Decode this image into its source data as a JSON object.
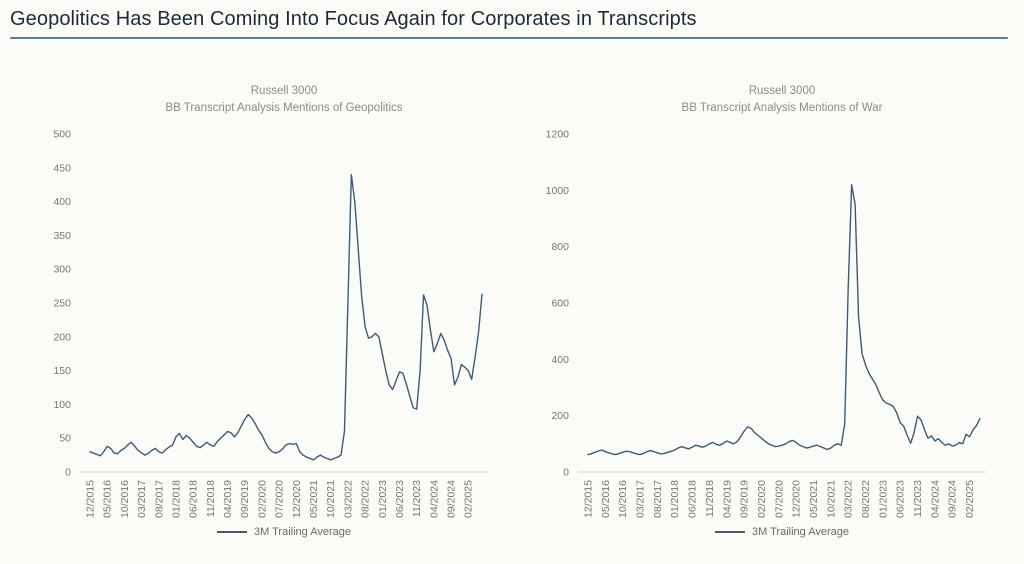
{
  "page": {
    "title": "Geopolitics Has Been Coming Into Focus Again for Corporates in Transcripts"
  },
  "colors": {
    "background": "#fbfbf8",
    "title_text": "#1e2a38",
    "title_underline": "#5e7e95",
    "chart_title_text": "#8c8c86",
    "axis_tick_text": "#767672",
    "axis_line": "#d9d9d4",
    "series_line": "#3e5c77",
    "legend_swatch": "#4d5a68",
    "legend_text": "#6b6b66"
  },
  "chart_data": [
    {
      "type": "line",
      "title_line1": "Russell 3000",
      "title_line2": "BB Transcript Analysis Mentions of Geopolitics",
      "legend_label": "3M Trailing Average",
      "legend_position": "bottom",
      "grid": false,
      "ylim": [
        0,
        500
      ],
      "yticks": [
        0,
        50,
        100,
        150,
        200,
        250,
        300,
        350,
        400,
        450,
        500
      ],
      "x_tick_every": 5,
      "x_tick_labels": [
        "12/2015",
        "05/2016",
        "10/2016",
        "03/2017",
        "08/2017",
        "01/2018",
        "06/2018",
        "11/2018",
        "04/2019",
        "09/2019",
        "02/2020",
        "07/2020",
        "12/2020",
        "05/2021",
        "10/2021",
        "03/2022",
        "08/2022",
        "01/2023",
        "06/2023",
        "11/2023",
        "04/2024",
        "09/2024",
        "02/2025"
      ],
      "x_start": "12/2015",
      "series": [
        {
          "name": "3M Trailing Average",
          "monthly_values": [
            30,
            28,
            26,
            24,
            30,
            38,
            35,
            28,
            27,
            32,
            35,
            40,
            44,
            38,
            32,
            28,
            25,
            28,
            32,
            35,
            30,
            28,
            33,
            37,
            40,
            52,
            57,
            48,
            54,
            50,
            44,
            38,
            36,
            40,
            44,
            40,
            38,
            45,
            50,
            55,
            60,
            58,
            52,
            58,
            68,
            78,
            85,
            80,
            72,
            62,
            55,
            44,
            35,
            30,
            28,
            30,
            34,
            40,
            42,
            41,
            42,
            30,
            25,
            22,
            20,
            18,
            22,
            25,
            22,
            20,
            18,
            20,
            22,
            25,
            60,
            250,
            440,
            400,
            330,
            260,
            215,
            198,
            200,
            205,
            200,
            175,
            150,
            129,
            122,
            135,
            148,
            146,
            130,
            112,
            95,
            93,
            150,
            262,
            247,
            210,
            178,
            190,
            205,
            195,
            180,
            168,
            129,
            140,
            159,
            155,
            150,
            137,
            170,
            207,
            263
          ]
        }
      ]
    },
    {
      "type": "line",
      "title_line1": "Russell 3000",
      "title_line2": "BB Transcript Analysis Mentions of War",
      "legend_label": "3M Trailing Average",
      "legend_position": "bottom",
      "grid": false,
      "ylim": [
        0,
        1200
      ],
      "yticks": [
        0,
        200,
        400,
        600,
        800,
        1000,
        1200
      ],
      "x_tick_every": 5,
      "x_tick_labels": [
        "12/2015",
        "05/2016",
        "10/2016",
        "03/2017",
        "08/2017",
        "01/2018",
        "06/2018",
        "11/2018",
        "04/2019",
        "09/2019",
        "02/2020",
        "07/2020",
        "12/2020",
        "05/2021",
        "10/2021",
        "03/2022",
        "08/2022",
        "01/2023",
        "06/2023",
        "11/2023",
        "04/2024",
        "09/2024",
        "02/2025"
      ],
      "x_start": "12/2015",
      "series": [
        {
          "name": "3M Trailing Average",
          "monthly_values": [
            62,
            65,
            70,
            75,
            78,
            72,
            68,
            64,
            62,
            66,
            70,
            74,
            72,
            68,
            64,
            62,
            66,
            72,
            76,
            72,
            68,
            64,
            66,
            70,
            74,
            78,
            85,
            90,
            86,
            82,
            88,
            95,
            92,
            88,
            92,
            100,
            105,
            98,
            95,
            102,
            110,
            105,
            100,
            108,
            125,
            145,
            160,
            155,
            140,
            130,
            120,
            110,
            100,
            95,
            90,
            92,
            95,
            100,
            108,
            112,
            105,
            95,
            90,
            85,
            88,
            92,
            95,
            90,
            85,
            80,
            85,
            95,
            100,
            95,
            170,
            650,
            1020,
            950,
            550,
            420,
            380,
            350,
            330,
            310,
            280,
            255,
            245,
            240,
            233,
            210,
            175,
            163,
            130,
            102,
            140,
            198,
            185,
            150,
            120,
            128,
            110,
            118,
            105,
            95,
            100,
            92,
            95,
            105,
            100,
            134,
            125,
            150,
            165,
            190
          ]
        }
      ]
    }
  ]
}
